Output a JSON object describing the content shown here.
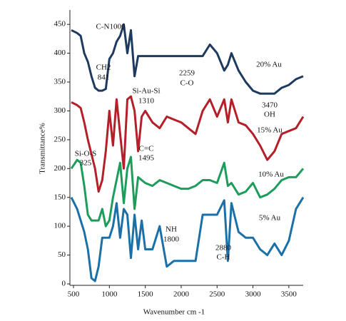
{
  "chart_data": {
    "type": "line",
    "xlabel": "Wavenumber cm -1",
    "ylabel": "Transmittance%",
    "x": [
      470,
      550,
      600,
      650,
      700,
      750,
      800,
      850,
      900,
      950,
      1000,
      1050,
      1100,
      1150,
      1200,
      1250,
      1300,
      1350,
      1400,
      1450,
      1500,
      1600,
      1700,
      1800,
      1900,
      2000,
      2100,
      2200,
      2300,
      2400,
      2500,
      2600,
      2650,
      2700,
      2800,
      2900,
      3000,
      3100,
      3200,
      3300,
      3400,
      3500,
      3600,
      3700
    ],
    "series": [
      {
        "name": "20% Au",
        "color": "#1f3a5f",
        "values": [
          440,
          435,
          430,
          400,
          385,
          360,
          340,
          335,
          335,
          338,
          390,
          400,
          420,
          430,
          450,
          400,
          440,
          360,
          395,
          395,
          395,
          395,
          395,
          395,
          395,
          395,
          395,
          395,
          395,
          415,
          400,
          370,
          380,
          400,
          370,
          350,
          335,
          330,
          330,
          330,
          340,
          345,
          355,
          360
        ]
      },
      {
        "name": "15% Au",
        "color": "#b3202a",
        "values": [
          315,
          310,
          305,
          280,
          250,
          225,
          200,
          160,
          180,
          230,
          300,
          240,
          320,
          260,
          200,
          320,
          325,
          300,
          230,
          290,
          300,
          280,
          270,
          290,
          285,
          280,
          270,
          260,
          300,
          320,
          290,
          320,
          280,
          320,
          280,
          275,
          260,
          240,
          215,
          230,
          260,
          265,
          270,
          290
        ]
      },
      {
        "name": "10% Au",
        "color": "#1e9c5c",
        "values": [
          200,
          215,
          210,
          170,
          120,
          110,
          110,
          110,
          130,
          100,
          110,
          150,
          180,
          210,
          140,
          200,
          220,
          130,
          185,
          180,
          175,
          170,
          180,
          175,
          170,
          165,
          165,
          170,
          180,
          180,
          175,
          210,
          170,
          175,
          155,
          160,
          175,
          150,
          155,
          165,
          180,
          185,
          185,
          200
        ]
      },
      {
        "name": "5% Au",
        "color": "#1b70a8",
        "values": [
          150,
          130,
          110,
          90,
          60,
          10,
          5,
          30,
          80,
          80,
          80,
          100,
          140,
          80,
          130,
          120,
          45,
          120,
          60,
          110,
          60,
          60,
          100,
          30,
          40,
          40,
          40,
          40,
          120,
          120,
          120,
          145,
          40,
          140,
          90,
          80,
          80,
          60,
          50,
          70,
          50,
          75,
          130,
          150
        ]
      }
    ],
    "annotations": [
      "C-N1000",
      "CH2",
      "841",
      "2259",
      "C-O",
      "Si-Au-Si",
      "1310",
      "3470",
      "OH",
      "C=C",
      "1495",
      "Si-O-S",
      "325",
      "NH",
      "1800",
      "2880",
      "C-H"
    ],
    "xlim": [
      450,
      3700
    ],
    "xticks": [
      500,
      1000,
      1500,
      2000,
      2500,
      3000,
      3500
    ],
    "ylim": [
      0,
      470
    ],
    "yticks": [
      0,
      50,
      100,
      150,
      200,
      250,
      300,
      350,
      400,
      450
    ],
    "grid": false
  }
}
